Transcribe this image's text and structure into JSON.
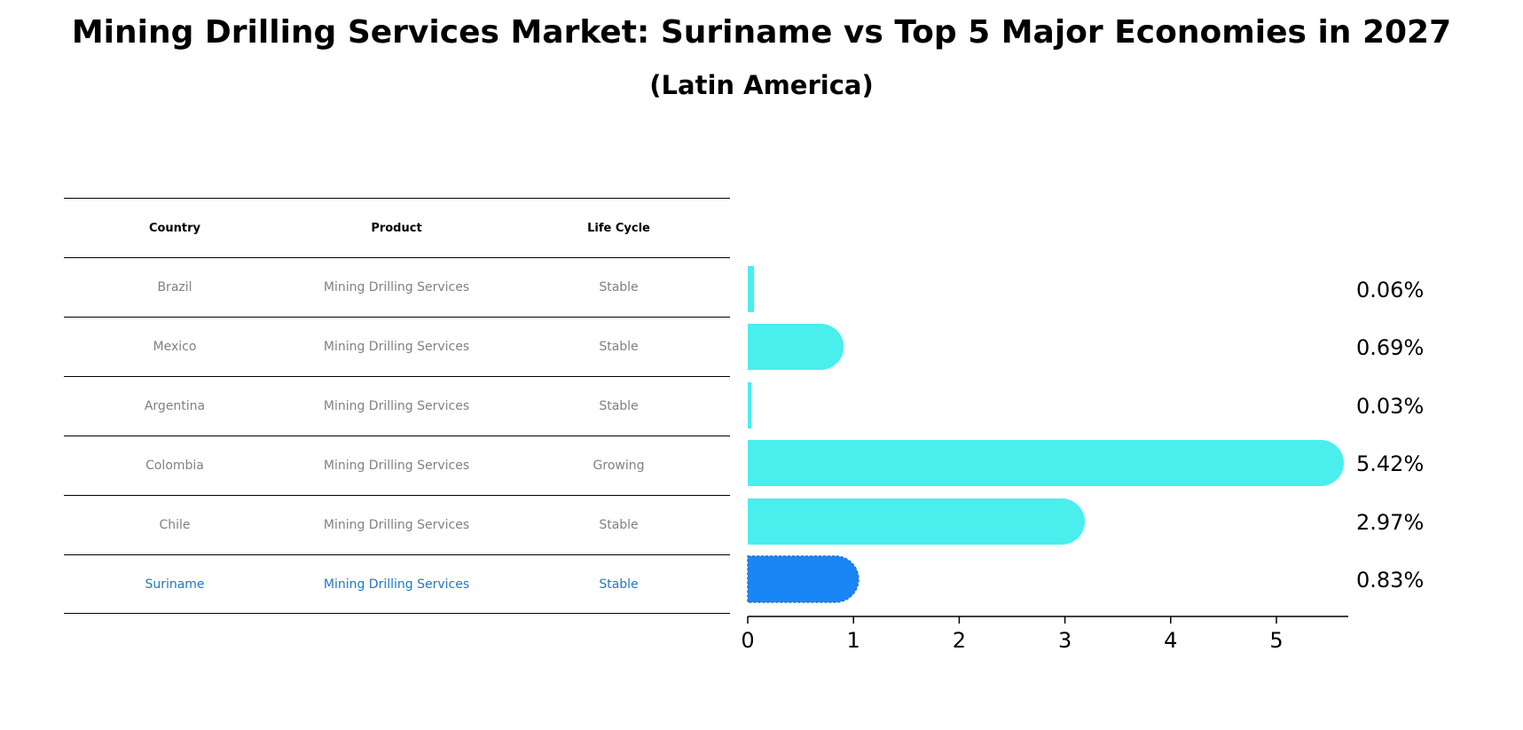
{
  "title": "Mining Drilling Services Market: Suriname vs Top 5 Major Economies in 2027",
  "subtitle": "(Latin America)",
  "table": {
    "headers": [
      "Country",
      "Product",
      "Life Cycle"
    ],
    "rows": [
      {
        "country": "Brazil",
        "product": "Mining Drilling Services",
        "life_cycle": "Stable"
      },
      {
        "country": "Mexico",
        "product": "Mining Drilling Services",
        "life_cycle": "Stable"
      },
      {
        "country": "Argentina",
        "product": "Mining Drilling Services",
        "life_cycle": "Stable"
      },
      {
        "country": "Colombia",
        "product": "Mining Drilling Services",
        "life_cycle": "Growing"
      },
      {
        "country": "Chile",
        "product": "Mining Drilling Services",
        "life_cycle": "Stable"
      },
      {
        "country": "Suriname",
        "product": "Mining Drilling Services",
        "life_cycle": "Stable"
      }
    ]
  },
  "colors": {
    "bar": "#4aeeed",
    "highlight_bar": "#1a86f5",
    "highlight_text": "#1f77c4",
    "row_text": "#808080"
  },
  "chart_data": {
    "type": "bar",
    "orientation": "horizontal",
    "categories": [
      "Brazil",
      "Mexico",
      "Argentina",
      "Colombia",
      "Chile",
      "Suriname"
    ],
    "values": [
      0.06,
      0.69,
      0.03,
      5.42,
      2.97,
      0.83
    ],
    "value_labels": [
      "0.06%",
      "0.69%",
      "0.03%",
      "5.42%",
      "2.97%",
      "0.83%"
    ],
    "highlight": "Suriname",
    "xlim": [
      0,
      5.7
    ],
    "xticks": [
      0,
      1,
      2,
      3,
      4,
      5
    ],
    "xlabel": "",
    "ylabel": ""
  }
}
